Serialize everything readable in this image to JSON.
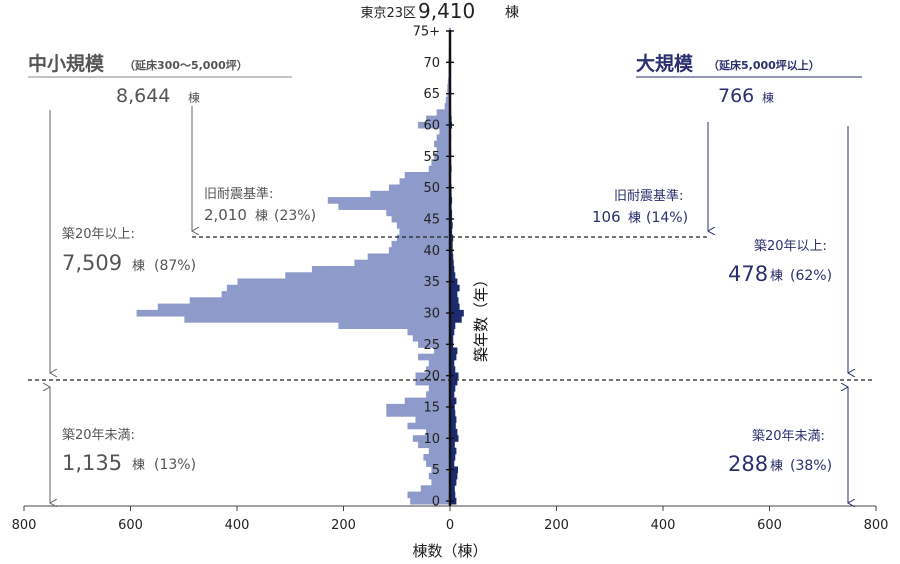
{
  "chart_data": {
    "type": "bar",
    "orientation": "horizontal-butterfly",
    "title_prefix": "東京23区",
    "title_value": "9,410",
    "title_unit": "棟",
    "xlabel": "棟数（棟）",
    "ylabel": "築年数（年）",
    "x_ticks": [
      "800",
      "600",
      "400",
      "200",
      "0",
      "200",
      "400",
      "600",
      "800"
    ],
    "y_ticks": [
      "0",
      "5",
      "10",
      "15",
      "20",
      "25",
      "30",
      "35",
      "40",
      "45",
      "50",
      "55",
      "60",
      "65",
      "70",
      "75+"
    ],
    "xlim": [
      -800,
      800
    ],
    "ylim": [
      0,
      75
    ],
    "grid": false,
    "colors": {
      "small": "#8e9ac9",
      "large": "#1d2a6e",
      "left_text": "#555555",
      "right_text": "#2b2f6e"
    },
    "series": [
      {
        "name": "中小規模",
        "side": "left",
        "values": [
          75,
          80,
          55,
          35,
          40,
          35,
          45,
          50,
          40,
          60,
          70,
          45,
          80,
          65,
          120,
          120,
          85,
          45,
          40,
          65,
          65,
          45,
          40,
          60,
          30,
          60,
          70,
          80,
          210,
          500,
          590,
          550,
          490,
          430,
          420,
          400,
          310,
          260,
          180,
          155,
          115,
          110,
          100,
          95,
          100,
          110,
          120,
          210,
          230,
          150,
          115,
          95,
          85,
          40,
          35,
          30,
          25,
          30,
          25,
          20,
          60,
          45,
          25,
          10,
          8,
          5,
          5,
          4,
          3,
          3,
          3,
          2,
          2,
          1,
          1,
          2
        ]
      },
      {
        "name": "大規模",
        "side": "right",
        "values": [
          12,
          10,
          9,
          12,
          14,
          15,
          8,
          10,
          12,
          9,
          16,
          14,
          11,
          12,
          10,
          9,
          12,
          8,
          10,
          14,
          16,
          10,
          8,
          12,
          14,
          6,
          6,
          8,
          10,
          22,
          26,
          18,
          16,
          14,
          18,
          14,
          10,
          8,
          7,
          6,
          5,
          5,
          6,
          4,
          5,
          4,
          4,
          3,
          4,
          3,
          3,
          2,
          2,
          3,
          2,
          2,
          2,
          1,
          2,
          1,
          4,
          3,
          2,
          1,
          1,
          1,
          1,
          1,
          1,
          1,
          0,
          0,
          0,
          0,
          0,
          1
        ]
      }
    ]
  },
  "annotations": {
    "left": {
      "title": "中小規模",
      "title_sub": "（延床300～5,000坪）",
      "total": "8,644",
      "total_unit": "棟",
      "old_label": "旧耐震基準:",
      "old_value": "2,010",
      "old_unit": "棟",
      "old_pct": "(23%)",
      "over_label": "築20年以上:",
      "over_value": "7,509",
      "over_unit": "棟",
      "over_pct": "(87%)",
      "under_label": "築20年未満:",
      "under_value": "1,135",
      "under_unit": "棟",
      "under_pct": "(13%)"
    },
    "right": {
      "title": "大規模",
      "title_sub": "（延床5,000坪以上）",
      "total": "766",
      "total_unit": "棟",
      "old_label": "旧耐震基準:",
      "old_value": "106",
      "old_unit": "棟",
      "old_pct": "(14%)",
      "over_label": "築20年以上:",
      "over_value": "478",
      "over_unit": "棟",
      "over_pct": "(62%)",
      "under_label": "築20年未満:",
      "under_value": "288",
      "under_unit": "棟",
      "under_pct": "(38%)"
    }
  }
}
